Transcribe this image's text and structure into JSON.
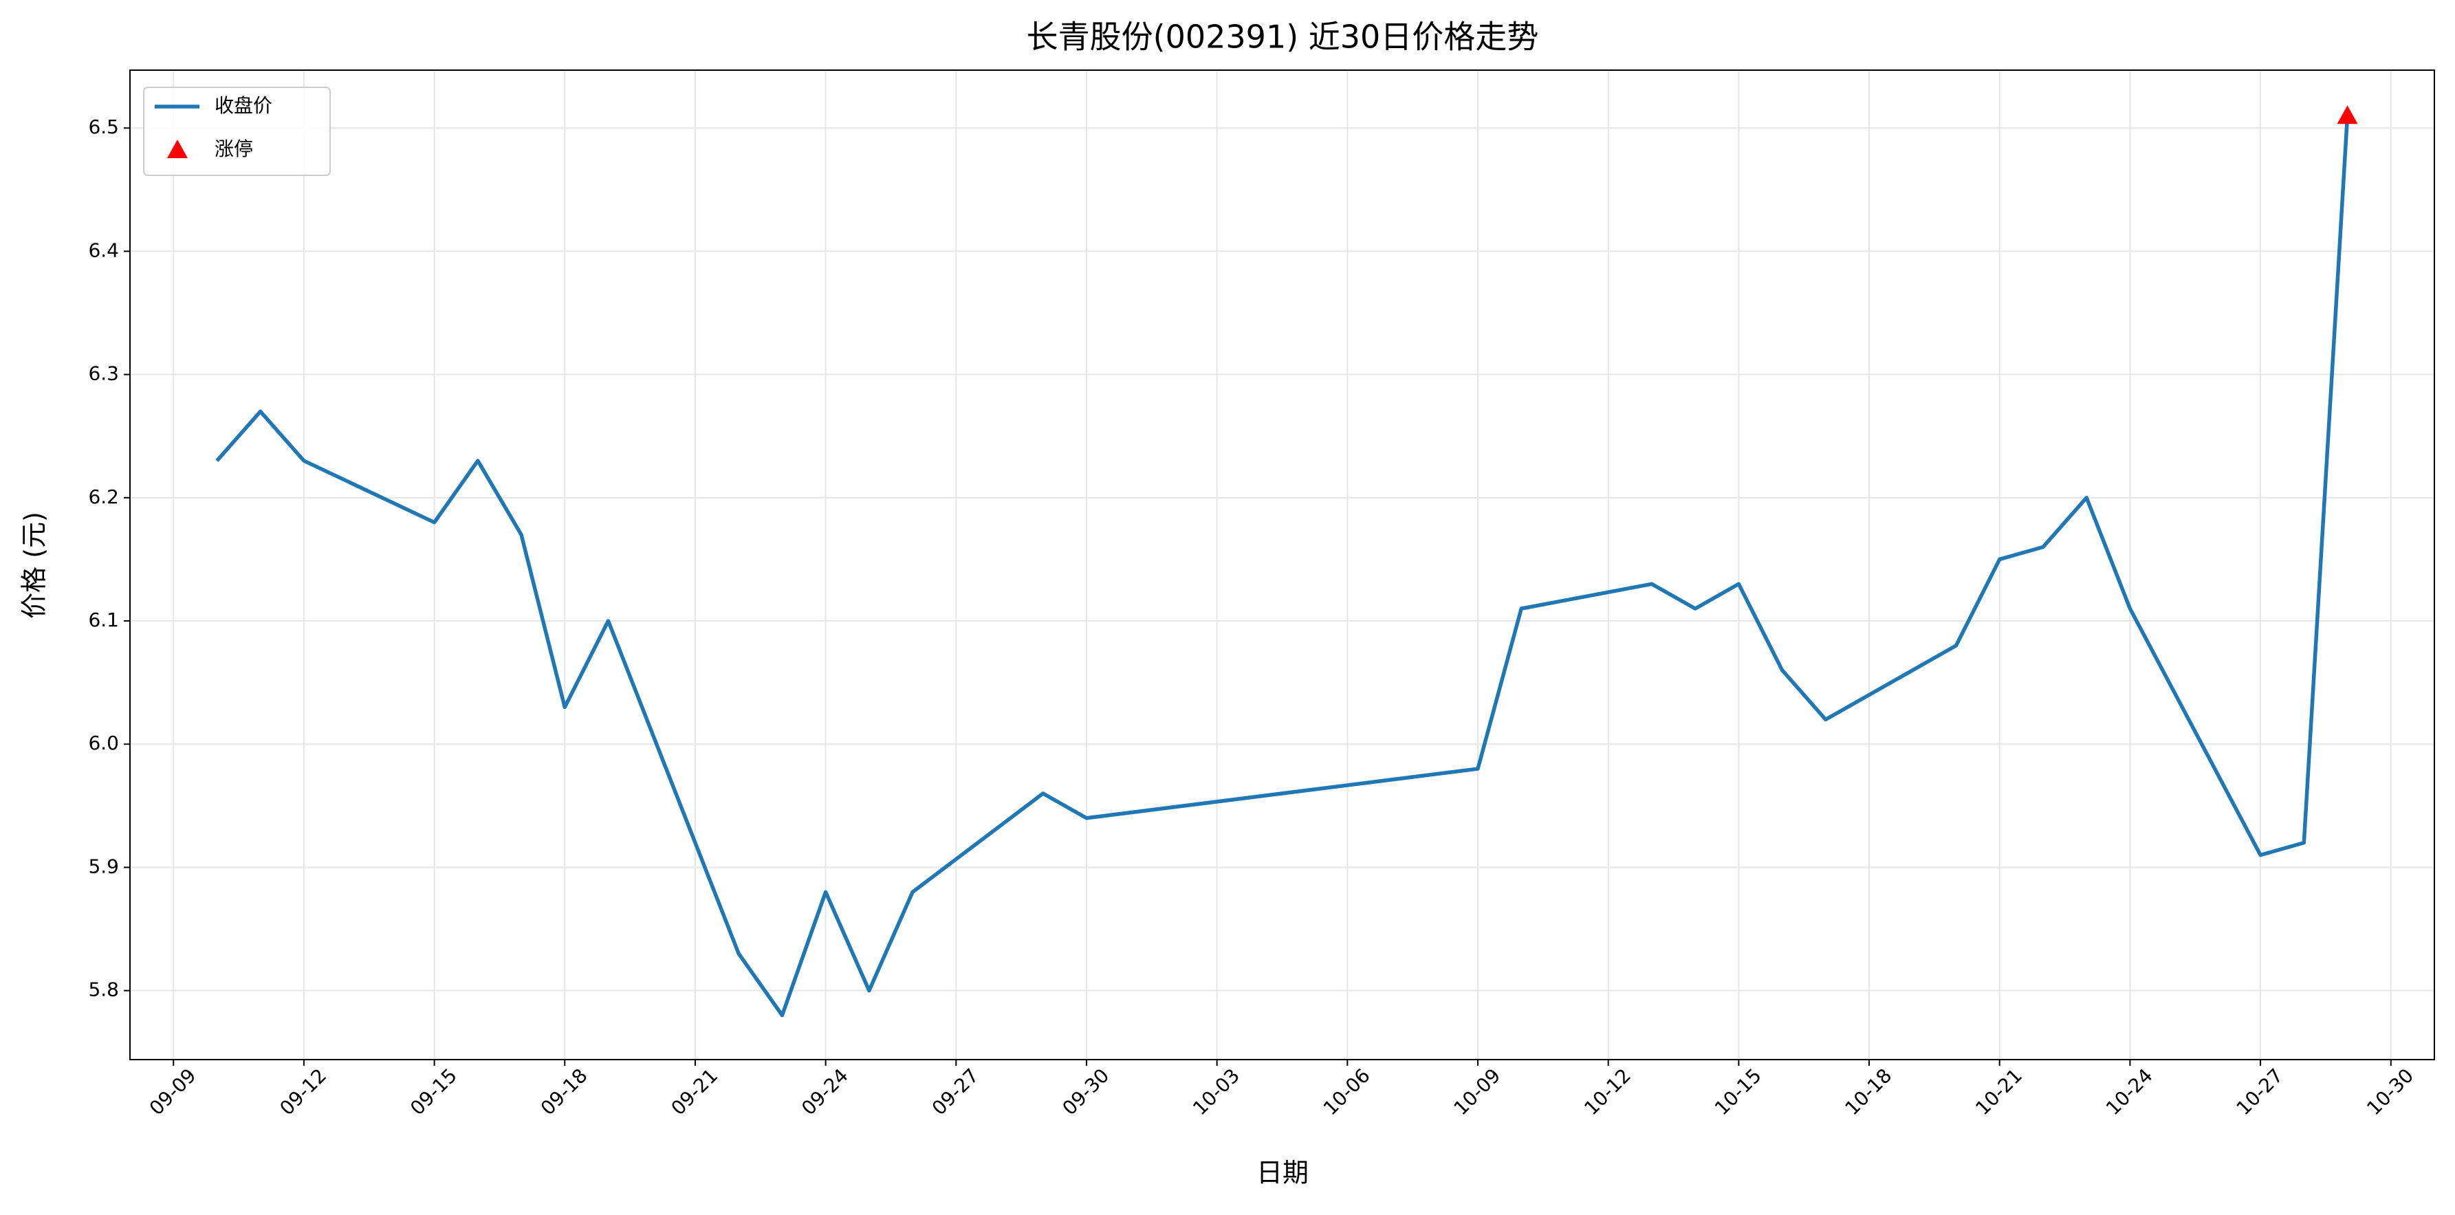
{
  "chart_data": {
    "type": "line",
    "title": "长青股份(002391) 近30日价格走势",
    "x_label": "日期",
    "y_label": "价格 (元)",
    "x": [
      "09-10",
      "09-11",
      "09-12",
      "09-15",
      "09-16",
      "09-17",
      "09-18",
      "09-19",
      "09-22",
      "09-23",
      "09-24",
      "09-25",
      "09-26",
      "09-29",
      "09-30",
      "10-09",
      "10-10",
      "10-13",
      "10-14",
      "10-15",
      "10-16",
      "10-17",
      "10-20",
      "10-21",
      "10-22",
      "10-23",
      "10-24",
      "10-27",
      "10-28",
      "10-29"
    ],
    "series": [
      {
        "name": "收盘价",
        "color": "#1f77b4",
        "values": [
          6.23,
          6.27,
          6.23,
          6.18,
          6.23,
          6.17,
          6.03,
          6.1,
          5.83,
          5.78,
          5.88,
          5.8,
          5.88,
          5.96,
          5.94,
          5.98,
          6.11,
          6.13,
          6.11,
          6.13,
          6.06,
          6.02,
          6.08,
          6.15,
          6.16,
          6.2,
          6.11,
          5.91,
          5.92,
          6.51
        ]
      }
    ],
    "markers": {
      "name": "涨停",
      "color": "#ff0000",
      "x": [
        "10-29"
      ],
      "values": [
        6.51
      ]
    },
    "xlim": [
      "09-08",
      "10-31"
    ],
    "xticks": [
      "09-09",
      "09-12",
      "09-15",
      "09-18",
      "09-21",
      "09-24",
      "09-27",
      "09-30",
      "10-03",
      "10-06",
      "10-09",
      "10-12",
      "10-15",
      "10-18",
      "10-21",
      "10-24",
      "10-27",
      "10-30"
    ],
    "ylim": [
      5.744,
      6.547
    ],
    "yticks": [
      5.8,
      5.9,
      {
        "value": 6,
        "label": "6.0"
      },
      6.1,
      6.2,
      6.3,
      6.4,
      6.5
    ],
    "grid": true,
    "legend": "upper left"
  }
}
